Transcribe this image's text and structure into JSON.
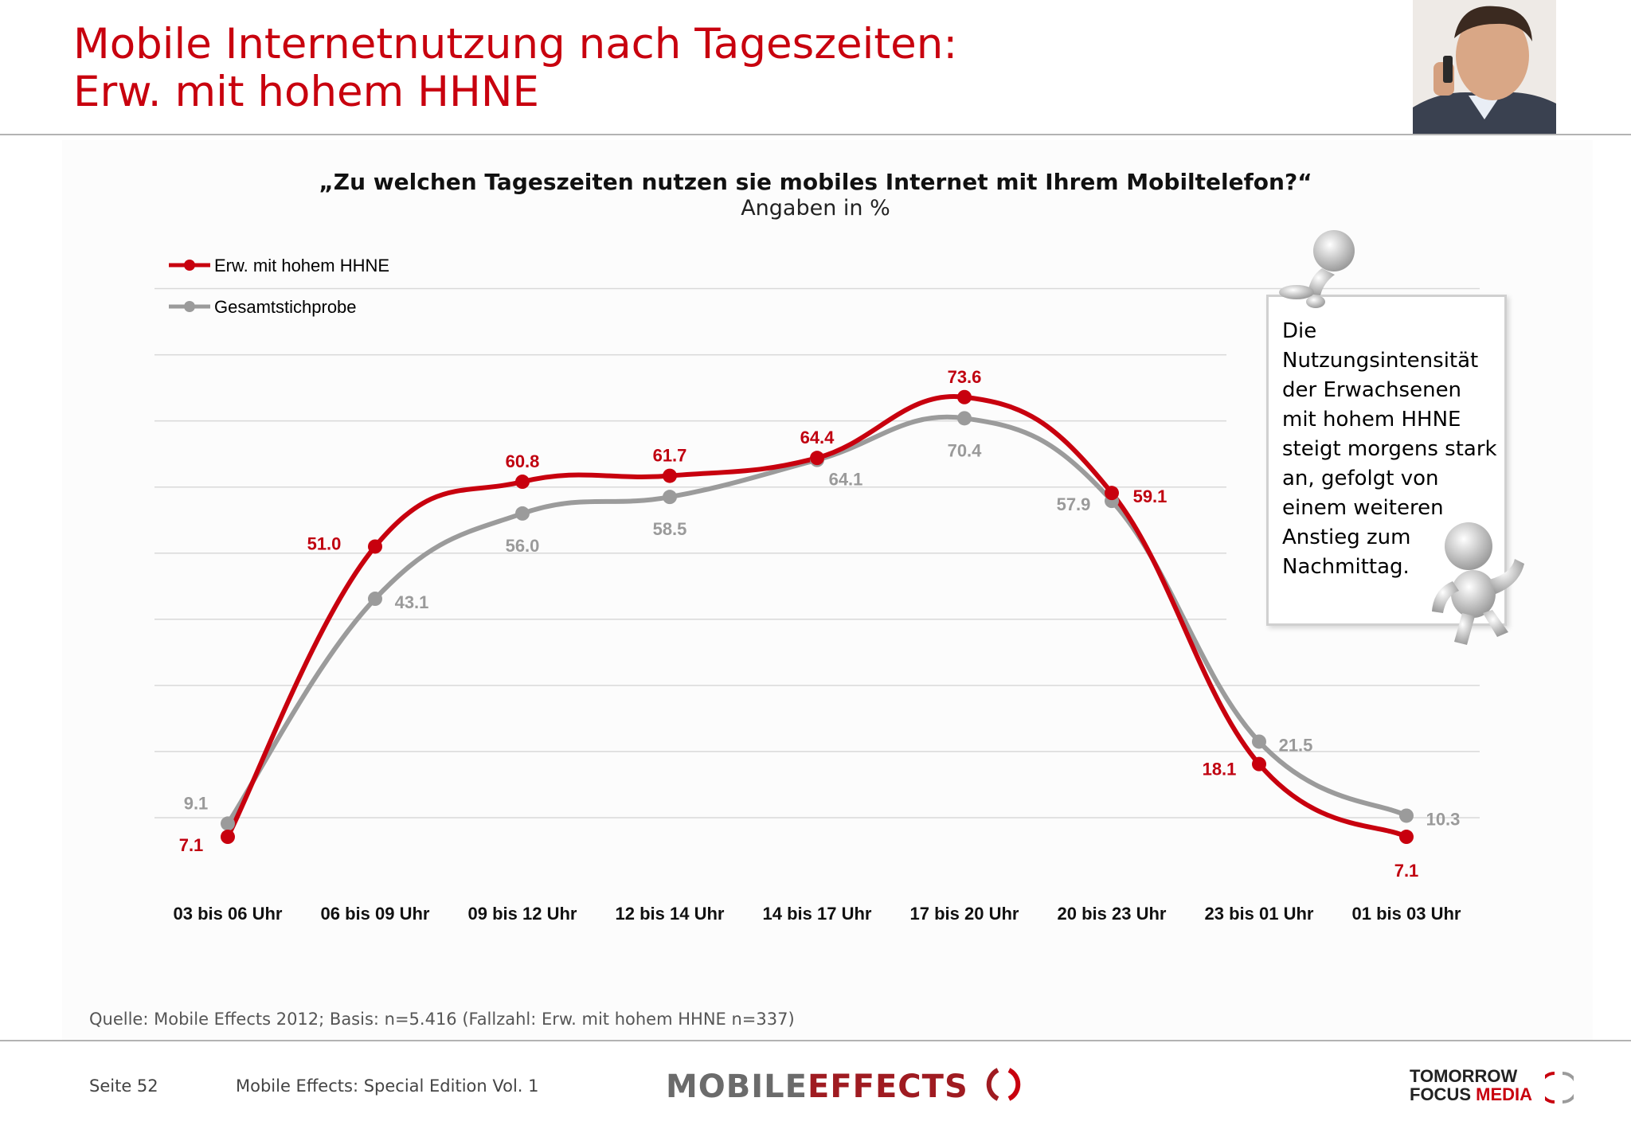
{
  "header": {
    "title_line1": "Mobile Internetnutzung nach Tageszeiten:",
    "title_line2": "Erw. mit hohem HHNE"
  },
  "chart_question": "„Zu welchen Tageszeiten nutzen sie mobiles Internet mit Ihrem Mobiltelefon?“",
  "chart_unit": "Angaben in %",
  "note": "Die Nutzungsintensität der Erwachsenen mit hohem HHNE steigt morgens stark an, gefolgt von einem weiteren Anstieg zum Nachmittag.",
  "chart_data": {
    "type": "line",
    "title": "„Zu welchen Tageszeiten nutzen sie mobiles Internet mit Ihrem Mobiltelefon?“",
    "subtitle": "Angaben in %",
    "categories": [
      "03 bis 06 Uhr",
      "06 bis 09 Uhr",
      "09 bis 12 Uhr",
      "12 bis 14 Uhr",
      "14 bis 17 Uhr",
      "17 bis 20 Uhr",
      "20 bis 23 Uhr",
      "23 bis 01 Uhr",
      "01 bis 03 Uhr"
    ],
    "series": [
      {
        "name": "Erw. mit hohem HHNE",
        "color": "#c8000e",
        "values": [
          7.1,
          51.0,
          60.8,
          61.7,
          64.4,
          73.6,
          59.1,
          18.1,
          7.1
        ],
        "labels": [
          "7.1",
          "51.0",
          "60.8",
          "61.7",
          "64.4",
          "73.6",
          "59.1",
          "18.1",
          "7.1"
        ]
      },
      {
        "name": "Gesamtstichprobe",
        "color": "#9b9b9b",
        "values": [
          9.1,
          43.1,
          56.0,
          58.5,
          64.1,
          70.4,
          57.9,
          21.5,
          10.3
        ],
        "labels": [
          "9.1",
          "43.1",
          "56.0",
          "58.5",
          "64.1",
          "70.4",
          "57.9",
          "21.5",
          "10.3"
        ]
      }
    ],
    "ylim": [
      0,
      80
    ],
    "grid": true,
    "legend_position": "top-left",
    "smooth": true
  },
  "footer": {
    "source": "Quelle: Mobile Effects 2012; Basis: n=5.416 (Fallzahl: Erw. mit hohem HHNE n=337)",
    "page": "Seite 52",
    "edition": "Mobile Effects: Special Edition Vol. 1",
    "brand_mobile": "MOBILE",
    "brand_effects": "EFFECTS",
    "brand2_line1": "TOMORROW",
    "brand2_line2a": "FOCUS",
    "brand2_line2b": "MEDIA"
  }
}
